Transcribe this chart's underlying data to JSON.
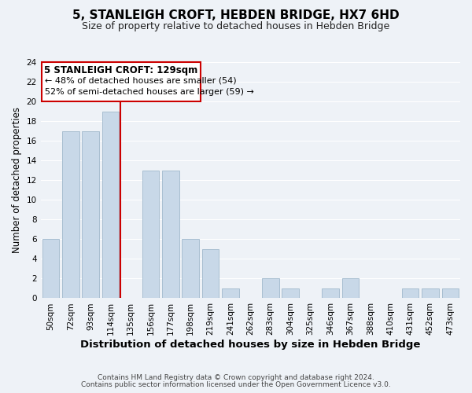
{
  "title": "5, STANLEIGH CROFT, HEBDEN BRIDGE, HX7 6HD",
  "subtitle": "Size of property relative to detached houses in Hebden Bridge",
  "xlabel": "Distribution of detached houses by size in Hebden Bridge",
  "ylabel": "Number of detached properties",
  "bar_labels": [
    "50sqm",
    "72sqm",
    "93sqm",
    "114sqm",
    "135sqm",
    "156sqm",
    "177sqm",
    "198sqm",
    "219sqm",
    "241sqm",
    "262sqm",
    "283sqm",
    "304sqm",
    "325sqm",
    "346sqm",
    "367sqm",
    "388sqm",
    "410sqm",
    "431sqm",
    "452sqm",
    "473sqm"
  ],
  "bar_values": [
    6,
    17,
    17,
    19,
    0,
    13,
    13,
    6,
    5,
    1,
    0,
    2,
    1,
    0,
    1,
    2,
    0,
    0,
    1,
    1,
    1
  ],
  "bar_color": "#c8d8e8",
  "bar_edge_color": "#a0b8cc",
  "vline_color": "#cc0000",
  "ylim": [
    0,
    24
  ],
  "yticks": [
    0,
    2,
    4,
    6,
    8,
    10,
    12,
    14,
    16,
    18,
    20,
    22,
    24
  ],
  "annotation_title": "5 STANLEIGH CROFT: 129sqm",
  "annotation_line1": "← 48% of detached houses are smaller (54)",
  "annotation_line2": "52% of semi-detached houses are larger (59) →",
  "annotation_box_color": "#ffffff",
  "annotation_box_edge": "#cc0000",
  "footer_line1": "Contains HM Land Registry data © Crown copyright and database right 2024.",
  "footer_line2": "Contains public sector information licensed under the Open Government Licence v3.0.",
  "title_fontsize": 11,
  "subtitle_fontsize": 9,
  "xlabel_fontsize": 9.5,
  "ylabel_fontsize": 8.5,
  "tick_fontsize": 7.5,
  "annotation_title_fontsize": 8.5,
  "annotation_fontsize": 8,
  "footer_fontsize": 6.5,
  "background_color": "#eef2f7",
  "grid_color": "#ffffff"
}
